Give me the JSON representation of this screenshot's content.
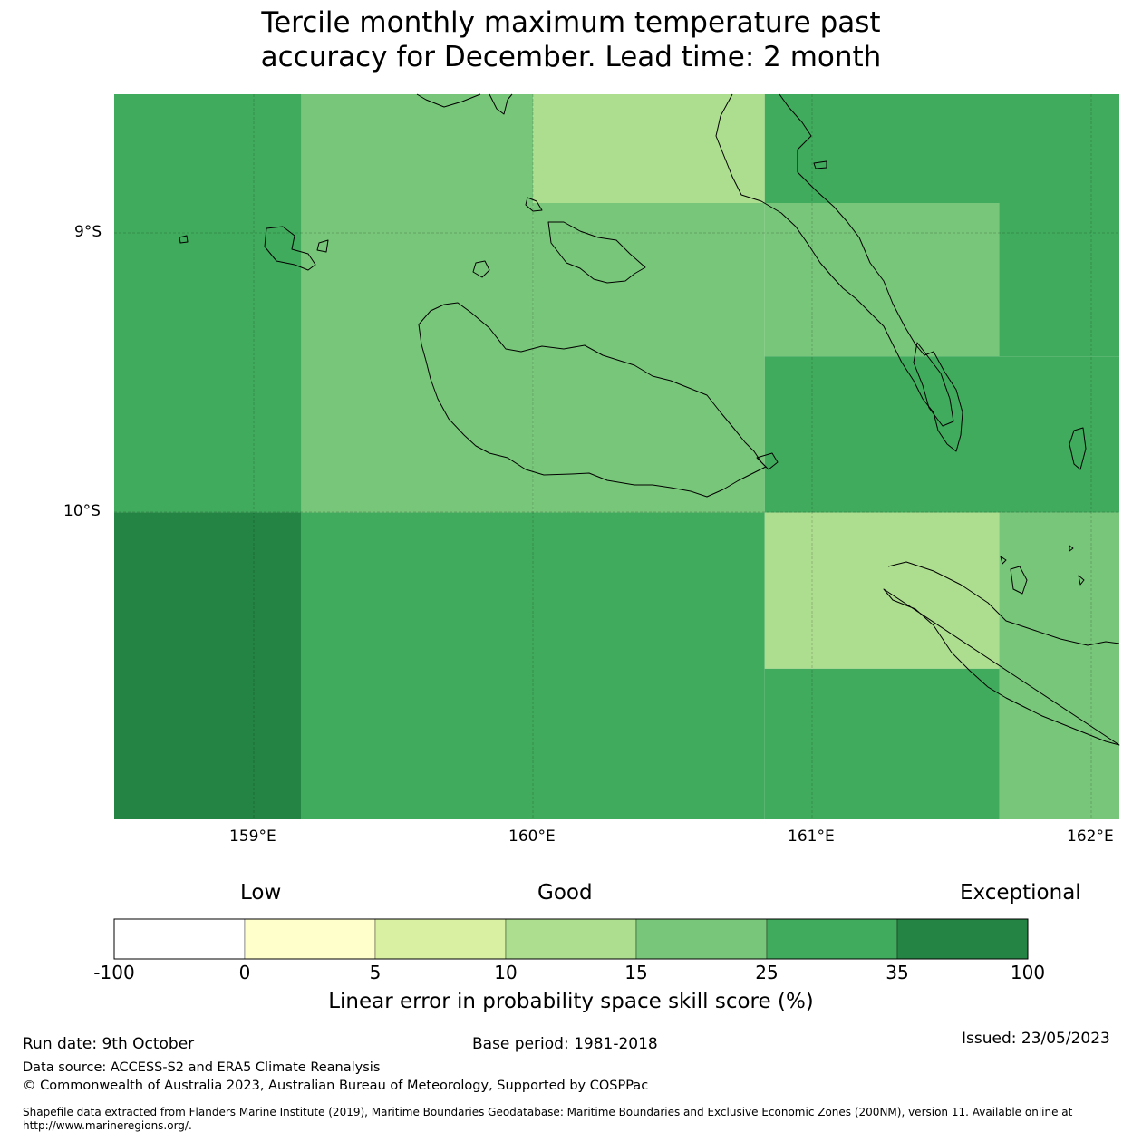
{
  "title_line1": "Tercile monthly maximum temperature past",
  "title_line2": "accuracy for December. Lead time: 2 month",
  "map": {
    "lat_labels": [
      "9°S",
      "10°S"
    ],
    "lon_labels": [
      "159°E",
      "160°E",
      "161°E",
      "162°E"
    ],
    "extent": {
      "lon_min": 158.5,
      "lon_max": 162.1,
      "lat_top": -8.5,
      "lat_bottom": -11.1
    },
    "cells": [
      {
        "lon": [
          158.5,
          159.17
        ],
        "lat": [
          -8.5,
          -10.0
        ],
        "color": "#41ab5d"
      },
      {
        "lon": [
          159.17,
          160.0
        ],
        "lat": [
          -8.5,
          -10.0
        ],
        "color": "#78c679"
      },
      {
        "lon": [
          160.0,
          160.83
        ],
        "lat": [
          -8.5,
          -8.89
        ],
        "color": "#addd8e"
      },
      {
        "lon": [
          160.0,
          160.83
        ],
        "lat": [
          -8.89,
          -10.0
        ],
        "color": "#78c679"
      },
      {
        "lon": [
          160.83,
          162.1
        ],
        "lat": [
          -8.5,
          -8.89
        ],
        "color": "#41ab5d"
      },
      {
        "lon": [
          160.83,
          161.67
        ],
        "lat": [
          -8.89,
          -9.44
        ],
        "color": "#78c679"
      },
      {
        "lon": [
          161.67,
          162.1
        ],
        "lat": [
          -8.89,
          -9.44
        ],
        "color": "#41ab5d"
      },
      {
        "lon": [
          160.83,
          162.1
        ],
        "lat": [
          -9.44,
          -10.0
        ],
        "color": "#41ab5d"
      },
      {
        "lon": [
          158.5,
          159.17
        ],
        "lat": [
          -10.0,
          -11.1
        ],
        "color": "#238443"
      },
      {
        "lon": [
          159.17,
          160.83
        ],
        "lat": [
          -10.0,
          -11.1
        ],
        "color": "#41ab5d"
      },
      {
        "lon": [
          160.83,
          161.67
        ],
        "lat": [
          -10.0,
          -10.56
        ],
        "color": "#addd8e"
      },
      {
        "lon": [
          160.83,
          161.67
        ],
        "lat": [
          -10.56,
          -11.1
        ],
        "color": "#41ab5d"
      },
      {
        "lon": [
          161.67,
          162.1
        ],
        "lat": [
          -10.0,
          -11.1
        ],
        "color": "#78c679"
      }
    ]
  },
  "colorbar": {
    "category_low": "Low",
    "category_good": "Good",
    "category_exceptional": "Exceptional",
    "ticks": [
      "-100",
      "0",
      "5",
      "10",
      "15",
      "25",
      "35",
      "100"
    ],
    "colors": [
      "#ffffff",
      "#ffffcc",
      "#d9f0a3",
      "#addd8e",
      "#78c679",
      "#41ab5d",
      "#238443"
    ],
    "label": "Linear error in probability space skill score (%)"
  },
  "footer": {
    "run_date": "Run date: 9th October",
    "base_period": "Base period: 1981-2018",
    "issued": "Issued: 23/05/2023",
    "data_source": "Data source: ACCESS-S2 and ERA5 Climate Reanalysis",
    "copyright": "© Commonwealth of Australia 2023, Australian Bureau of Meteorology, Supported by COSPPac",
    "shapefile": "Shapefile data extracted from Flanders Marine Institute (2019), Maritime Boundaries Geodatabase: Maritime Boundaries and Exclusive Economic Zones (200NM), version 11. Available online at http://www.marineregions.org/."
  }
}
